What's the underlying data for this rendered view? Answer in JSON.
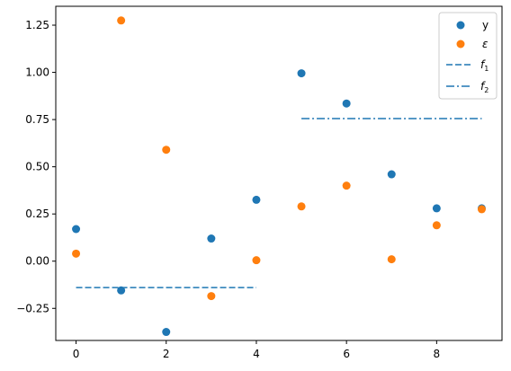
{
  "chart_data": {
    "type": "scatter",
    "title": "",
    "xlabel": "",
    "ylabel": "",
    "xlim": [
      -0.45,
      9.45
    ],
    "ylim": [
      -0.42,
      1.35
    ],
    "grid": false,
    "legend_position": "top-right",
    "x_ticks": [
      0,
      2,
      4,
      6,
      8
    ],
    "x_tick_labels": [
      "0",
      "2",
      "4",
      "6",
      "8"
    ],
    "y_ticks": [
      -0.25,
      0,
      0.25,
      0.5,
      0.75,
      1.0,
      1.25
    ],
    "y_tick_labels": [
      "−0.25",
      "0.00",
      "0.25",
      "0.50",
      "0.75",
      "1.00",
      "1.25"
    ],
    "scatter_series": [
      {
        "name": "y",
        "color": "#1f77b4",
        "points": [
          [
            0,
            0.17
          ],
          [
            1,
            -0.155
          ],
          [
            2,
            -0.375
          ],
          [
            3,
            0.12
          ],
          [
            4,
            0.325
          ],
          [
            5,
            0.995
          ],
          [
            6,
            0.835
          ],
          [
            7,
            0.46
          ],
          [
            8,
            0.28
          ],
          [
            9,
            0.28
          ]
        ]
      },
      {
        "name": "ε",
        "color": "#ff7f0e",
        "points": [
          [
            0,
            0.04
          ],
          [
            1,
            1.275
          ],
          [
            2,
            0.59
          ],
          [
            3,
            -0.185
          ],
          [
            4,
            0.005
          ],
          [
            5,
            0.29
          ],
          [
            6,
            0.4
          ],
          [
            7,
            0.01
          ],
          [
            8,
            0.19
          ],
          [
            9,
            0.275
          ]
        ]
      }
    ],
    "line_series": [
      {
        "name": "f",
        "subscript": "1",
        "color": "#1f77b4",
        "style": "dashed",
        "x": [
          0,
          4
        ],
        "y": [
          -0.14,
          -0.14
        ]
      },
      {
        "name": "f",
        "subscript": "2",
        "color": "#1f77b4",
        "style": "dashdot",
        "x": [
          5,
          9
        ],
        "y": [
          0.755,
          0.755
        ]
      }
    ]
  }
}
